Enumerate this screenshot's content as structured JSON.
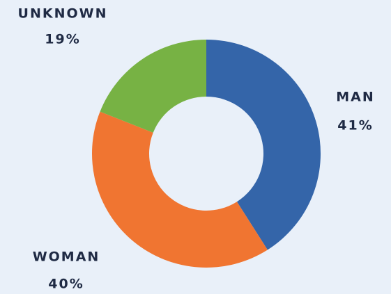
{
  "chart_data": {
    "type": "donut",
    "categories": [
      "MAN",
      "WOMAN",
      "UNKNOWN"
    ],
    "values": [
      41,
      40,
      19
    ],
    "value_labels": [
      "41%",
      "40%",
      "19%"
    ],
    "colors": [
      "#3465a9",
      "#f07531",
      "#77b244"
    ]
  }
}
